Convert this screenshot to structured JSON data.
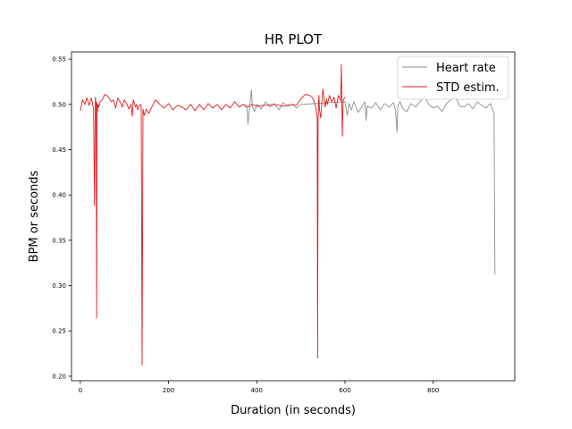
{
  "chart_data": {
    "type": "line",
    "title": "HR PLOT",
    "xlabel": "Duration (in seconds)",
    "ylabel": "BPM or seconds",
    "xlim": [
      -20,
      985
    ],
    "ylim": [
      0.195,
      0.558
    ],
    "xticks": [
      0,
      200,
      400,
      600,
      800
    ],
    "yticks": [
      0.2,
      0.25,
      0.3,
      0.35,
      0.4,
      0.45,
      0.5,
      0.55
    ],
    "ytick_labels": [
      "0.20",
      "0.25",
      "0.30",
      "0.35",
      "0.40",
      "0.45",
      "0.50",
      "0.55"
    ],
    "legend_position": "upper right",
    "series": [
      {
        "name": "Heart rate",
        "color": "#8c8c8c",
        "x": [
          360,
          370,
          378,
          380,
          385,
          388,
          390,
          395,
          400,
          410,
          420,
          430,
          440,
          450,
          460,
          470,
          480,
          490,
          500,
          600,
          605,
          610,
          615,
          620,
          625,
          630,
          640,
          645,
          648,
          650,
          660,
          670,
          680,
          690,
          700,
          710,
          715,
          718,
          720,
          725,
          730,
          740,
          750,
          760,
          770,
          780,
          790,
          800,
          810,
          820,
          830,
          840,
          850,
          860,
          870,
          880,
          890,
          900,
          910,
          920,
          930,
          935,
          938,
          940
        ],
        "y": [
          0.497,
          0.5,
          0.496,
          0.478,
          0.503,
          0.516,
          0.498,
          0.492,
          0.5,
          0.495,
          0.503,
          0.497,
          0.501,
          0.494,
          0.502,
          0.498,
          0.5,
          0.496,
          0.5,
          0.503,
          0.488,
          0.501,
          0.494,
          0.503,
          0.497,
          0.491,
          0.499,
          0.503,
          0.482,
          0.498,
          0.496,
          0.502,
          0.494,
          0.501,
          0.497,
          0.502,
          0.493,
          0.469,
          0.499,
          0.503,
          0.496,
          0.492,
          0.501,
          0.497,
          0.503,
          0.509,
          0.5,
          0.496,
          0.498,
          0.492,
          0.501,
          0.505,
          0.51,
          0.498,
          0.497,
          0.501,
          0.495,
          0.503,
          0.499,
          0.496,
          0.501,
          0.494,
          0.491,
          0.312
        ]
      },
      {
        "name": "STD estim.",
        "color": "#e31a1c",
        "x": [
          0,
          5,
          10,
          15,
          20,
          25,
          30,
          32,
          34,
          36,
          37,
          38,
          39,
          40,
          42,
          45,
          50,
          55,
          60,
          65,
          70,
          75,
          80,
          85,
          90,
          95,
          100,
          105,
          110,
          115,
          118,
          120,
          125,
          128,
          130,
          135,
          138,
          140,
          142,
          145,
          150,
          155,
          160,
          165,
          170,
          175,
          180,
          190,
          200,
          210,
          220,
          230,
          240,
          250,
          260,
          270,
          280,
          290,
          300,
          310,
          320,
          330,
          340,
          350,
          360,
          370,
          380,
          390,
          400,
          420,
          440,
          460,
          480,
          490,
          500,
          510,
          520,
          525,
          530,
          535,
          537,
          538,
          539,
          540,
          541,
          542,
          545,
          550,
          555,
          558,
          560,
          565,
          570,
          575,
          580,
          585,
          590,
          592,
          594,
          596,
          600
        ],
        "y": [
          0.493,
          0.505,
          0.5,
          0.507,
          0.499,
          0.507,
          0.495,
          0.388,
          0.508,
          0.5,
          0.264,
          0.502,
          0.492,
          0.5,
          0.497,
          0.503,
          0.505,
          0.511,
          0.51,
          0.507,
          0.503,
          0.505,
          0.496,
          0.507,
          0.503,
          0.497,
          0.505,
          0.501,
          0.495,
          0.5,
          0.487,
          0.505,
          0.497,
          0.5,
          0.494,
          0.5,
          0.499,
          0.212,
          0.495,
          0.488,
          0.495,
          0.49,
          0.495,
          0.5,
          0.505,
          0.503,
          0.5,
          0.496,
          0.501,
          0.494,
          0.499,
          0.497,
          0.494,
          0.5,
          0.493,
          0.5,
          0.494,
          0.501,
          0.496,
          0.5,
          0.494,
          0.5,
          0.496,
          0.503,
          0.497,
          0.5,
          0.497,
          0.5,
          0.498,
          0.499,
          0.5,
          0.498,
          0.5,
          0.499,
          0.506,
          0.511,
          0.51,
          0.508,
          0.504,
          0.493,
          0.486,
          0.22,
          0.48,
          0.502,
          0.51,
          0.495,
          0.485,
          0.517,
          0.497,
          0.506,
          0.5,
          0.51,
          0.503,
          0.508,
          0.496,
          0.51,
          0.504,
          0.544,
          0.465,
          0.505,
          0.508
        ]
      }
    ]
  }
}
